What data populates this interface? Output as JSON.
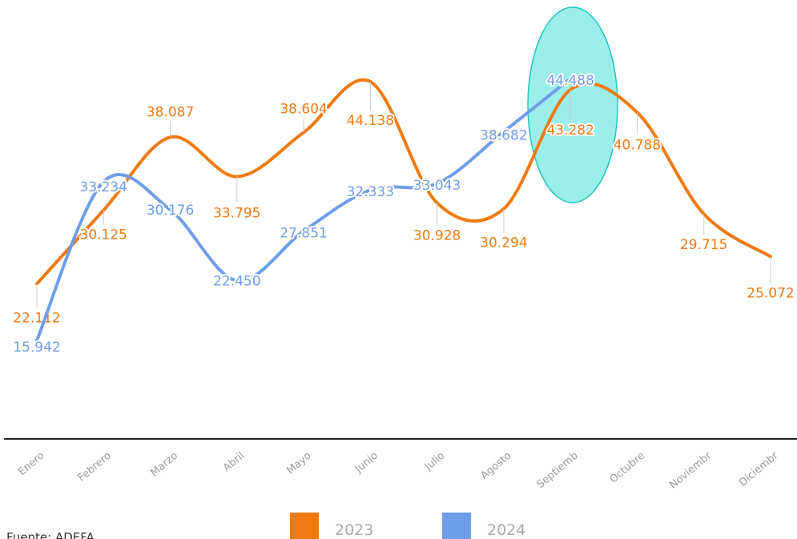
{
  "chart_data": {
    "type": "line",
    "categories": [
      "Enero",
      "Febrero",
      "Marzo",
      "Abril",
      "Mayo",
      "Junio",
      "Julio",
      "Agosto",
      "Septiemb",
      "Octubre",
      "Noviembr",
      "Diciembr"
    ],
    "series": [
      {
        "name": "2023",
        "color": "#f07a10",
        "values": [
          22.112,
          30.125,
          38.087,
          33.795,
          38.604,
          44.138,
          30.928,
          30.294,
          43.282,
          40.788,
          29.715,
          25.072
        ],
        "value_labels": [
          "22.112",
          "30.125",
          "38.087",
          "33.795",
          "38.604",
          "44.138",
          "30.928",
          "30.294",
          "43.282",
          "40.788",
          "29.715",
          "25.072"
        ]
      },
      {
        "name": "2024",
        "color": "#6f9de8",
        "values": [
          15.942,
          33.234,
          30.176,
          22.45,
          27.851,
          32.333,
          33.043,
          38.682,
          44.488,
          null,
          null,
          null
        ],
        "value_labels": [
          "15.942",
          "33.234",
          "30.176",
          "22.450",
          "27.851",
          "32.333",
          "33.043",
          "38.682",
          "44.488",
          null,
          null,
          null
        ]
      }
    ],
    "source": "Fuente: ADEFA"
  }
}
